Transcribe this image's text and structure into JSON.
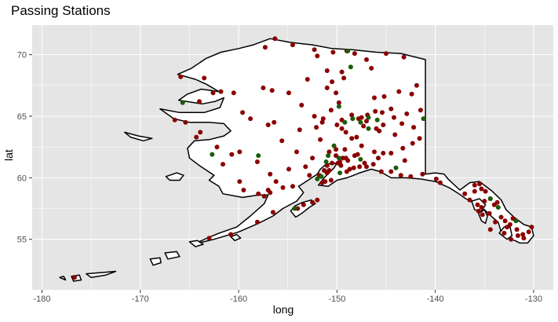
{
  "chart_data": {
    "type": "scatter",
    "title": "Passing Stations",
    "xlabel": "long",
    "ylabel": "lat",
    "xlim": [
      -181,
      -128
    ],
    "ylim": [
      50.9,
      72.4
    ],
    "x_ticks": [
      -180,
      -170,
      -160,
      -150,
      -140,
      -130
    ],
    "y_ticks": [
      55,
      60,
      65,
      70
    ],
    "grid": true,
    "background": "#e5e5e5",
    "grid_color": "#ffffff",
    "land_fill": "#ffffff",
    "land_stroke": "#000000",
    "series": [
      {
        "color": "#8b0000",
        "points": [
          [
            -176.7,
            51.9
          ],
          [
            -163.0,
            55.1
          ],
          [
            -160.8,
            55.4
          ],
          [
            -158.1,
            56.4
          ],
          [
            -156.5,
            57.2
          ],
          [
            -154.0,
            57.5
          ],
          [
            -153.4,
            57.8
          ],
          [
            -152.5,
            58.0
          ],
          [
            -152.0,
            58.2
          ],
          [
            -154.5,
            59.3
          ],
          [
            -155.5,
            59.2
          ],
          [
            -156.8,
            58.8
          ],
          [
            -157.4,
            58.5
          ],
          [
            -158.0,
            58.7
          ],
          [
            -159.5,
            59.0
          ],
          [
            -159.9,
            59.7
          ],
          [
            -157.0,
            59.0
          ],
          [
            -151.5,
            59.6
          ],
          [
            -151.2,
            59.7
          ],
          [
            -150.6,
            59.8
          ],
          [
            -151.0,
            60.4
          ],
          [
            -151.3,
            60.6
          ],
          [
            -151.0,
            61.0
          ],
          [
            -150.5,
            61.2
          ],
          [
            -149.9,
            61.2
          ],
          [
            -149.7,
            61.3
          ],
          [
            -149.4,
            61.6
          ],
          [
            -149.1,
            61.6
          ],
          [
            -148.9,
            61.4
          ],
          [
            -150.1,
            61.8
          ],
          [
            -150.8,
            62.1
          ],
          [
            -150.1,
            62.3
          ],
          [
            -149.2,
            62.3
          ],
          [
            -147.9,
            61.9
          ],
          [
            -149.0,
            60.5
          ],
          [
            -148.7,
            60.7
          ],
          [
            -148.3,
            60.8
          ],
          [
            -147.7,
            60.9
          ],
          [
            -147.0,
            60.9
          ],
          [
            -146.3,
            61.1
          ],
          [
            -145.5,
            60.5
          ],
          [
            -144.5,
            60.5
          ],
          [
            -143.5,
            60.2
          ],
          [
            -142.5,
            60.1
          ],
          [
            -141.3,
            60.3
          ],
          [
            -139.9,
            59.9
          ],
          [
            -139.5,
            59.6
          ],
          [
            -136.0,
            59.4
          ],
          [
            -135.5,
            59.5
          ],
          [
            -134.9,
            58.9
          ],
          [
            -134.4,
            58.3
          ],
          [
            -135.0,
            58.1
          ],
          [
            -134.0,
            57.8
          ],
          [
            -135.3,
            57.6
          ],
          [
            -135.6,
            57.3
          ],
          [
            -134.5,
            57.1
          ],
          [
            -133.3,
            56.8
          ],
          [
            -133.9,
            56.4
          ],
          [
            -132.9,
            56.5
          ],
          [
            -132.4,
            56.2
          ],
          [
            -131.7,
            55.8
          ],
          [
            -131.6,
            55.3
          ],
          [
            -131.0,
            55.1
          ],
          [
            -130.5,
            55.6
          ],
          [
            -130.2,
            56.0
          ],
          [
            -133.0,
            55.5
          ],
          [
            -132.3,
            55.0
          ],
          [
            -134.4,
            55.8
          ],
          [
            -131.1,
            55.4
          ],
          [
            -132.7,
            56.0
          ],
          [
            -135.2,
            57.0
          ],
          [
            -133.7,
            58.0
          ],
          [
            -132.1,
            56.7
          ],
          [
            -136.5,
            58.2
          ],
          [
            -137.0,
            58.7
          ],
          [
            -136.0,
            58.9
          ],
          [
            -135.3,
            59.1
          ],
          [
            -135.7,
            57.8
          ],
          [
            -147.8,
            64.8
          ],
          [
            -147.5,
            64.9
          ],
          [
            -147.0,
            64.6
          ],
          [
            -146.0,
            64.0
          ],
          [
            -145.7,
            63.8
          ],
          [
            -145.3,
            64.3
          ],
          [
            -144.2,
            64.9
          ],
          [
            -143.4,
            64.4
          ],
          [
            -142.2,
            64.1
          ],
          [
            -141.6,
            63.2
          ],
          [
            -142.3,
            62.8
          ],
          [
            -143.3,
            62.4
          ],
          [
            -144.5,
            62.0
          ],
          [
            -145.3,
            62.0
          ],
          [
            -146.2,
            62.1
          ],
          [
            -147.5,
            62.6
          ],
          [
            -148.5,
            63.2
          ],
          [
            -149.1,
            63.7
          ],
          [
            -149.5,
            64.0
          ],
          [
            -150.0,
            64.3
          ],
          [
            -151.5,
            64.5
          ],
          [
            -152.3,
            65.0
          ],
          [
            -153.6,
            65.9
          ],
          [
            -154.9,
            66.9
          ],
          [
            -156.6,
            67.1
          ],
          [
            -157.5,
            67.3
          ],
          [
            -160.5,
            66.9
          ],
          [
            -162.6,
            66.9
          ],
          [
            -164.0,
            66.2
          ],
          [
            -165.4,
            64.5
          ],
          [
            -166.5,
            64.7
          ],
          [
            -163.9,
            63.7
          ],
          [
            -162.2,
            62.5
          ],
          [
            -160.7,
            61.9
          ],
          [
            -158.1,
            61.3
          ],
          [
            -156.8,
            60.3
          ],
          [
            -153.2,
            60.9
          ],
          [
            -152.5,
            61.6
          ],
          [
            -154.1,
            62.1
          ],
          [
            -155.6,
            63.0
          ],
          [
            -151.7,
            63.1
          ],
          [
            -157.0,
            64.3
          ],
          [
            -158.8,
            64.8
          ],
          [
            -159.6,
            65.3
          ],
          [
            -150.4,
            70.2
          ],
          [
            -149.0,
            70.3
          ],
          [
            -148.2,
            70.1
          ],
          [
            -147.0,
            69.6
          ],
          [
            -149.3,
            68.1
          ],
          [
            -149.5,
            68.6
          ],
          [
            -150.5,
            67.8
          ],
          [
            -150.1,
            66.9
          ],
          [
            -149.8,
            66.1
          ],
          [
            -146.2,
            66.5
          ],
          [
            -145.2,
            66.6
          ],
          [
            -143.7,
            67.0
          ],
          [
            -142.4,
            66.8
          ],
          [
            -141.5,
            65.5
          ],
          [
            -142.9,
            65.2
          ],
          [
            -144.5,
            65.6
          ],
          [
            -145.4,
            65.3
          ],
          [
            -146.9,
            65.1
          ],
          [
            -148.5,
            65.1
          ],
          [
            -149.5,
            64.7
          ],
          [
            -150.6,
            65.5
          ],
          [
            -151.4,
            64.8
          ],
          [
            -152.1,
            64.1
          ],
          [
            -156.3,
            71.3
          ],
          [
            -154.5,
            70.8
          ],
          [
            -152.3,
            70.4
          ],
          [
            -152.0,
            69.9
          ],
          [
            -157.3,
            70.6
          ],
          [
            -153.0,
            68.0
          ],
          [
            -151.0,
            67.3
          ],
          [
            -141.9,
            67.5
          ],
          [
            -143.2,
            69.8
          ],
          [
            -145.0,
            70.1
          ],
          [
            -146.5,
            68.9
          ],
          [
            -151.0,
            68.7
          ],
          [
            -165.9,
            68.2
          ],
          [
            -163.5,
            68.1
          ],
          [
            -161.8,
            67.0
          ],
          [
            -164.3,
            63.3
          ],
          [
            -161.6,
            61.1
          ],
          [
            -159.9,
            62.1
          ],
          [
            -156.4,
            64.5
          ],
          [
            -153.8,
            63.9
          ],
          [
            -148.0,
            63.3
          ],
          [
            -147.3,
            64.2
          ],
          [
            -146.1,
            65.4
          ],
          [
            -144.1,
            63.5
          ],
          [
            -143.1,
            61.4
          ],
          [
            -145.8,
            61.6
          ],
          [
            -147.2,
            61.2
          ],
          [
            -148.2,
            61.8
          ],
          [
            -149.6,
            61.0
          ],
          [
            -150.8,
            60.6
          ],
          [
            -151.8,
            60.2
          ],
          [
            -152.8,
            60.2
          ],
          [
            -154.9,
            60.7
          ],
          [
            -156.2,
            59.7
          ]
        ]
      },
      {
        "color": "#1a5c0a",
        "points": [
          [
            -148.9,
            70.3
          ],
          [
            -148.6,
            69.0
          ],
          [
            -149.8,
            65.8
          ],
          [
            -148.4,
            64.8
          ],
          [
            -147.6,
            64.5
          ],
          [
            -146.8,
            64.9
          ],
          [
            -145.9,
            64.7
          ],
          [
            -141.2,
            64.8
          ],
          [
            -149.2,
            64.5
          ],
          [
            -162.7,
            61.9
          ],
          [
            -158.0,
            61.8
          ],
          [
            -165.7,
            66.1
          ],
          [
            -151.1,
            61.3
          ],
          [
            -150.3,
            62.6
          ],
          [
            -149.8,
            61.6
          ],
          [
            -146.8,
            64.0
          ],
          [
            -147.6,
            61.5
          ],
          [
            -152.0,
            59.9
          ],
          [
            -154.3,
            57.5
          ],
          [
            -133.6,
            57.6
          ],
          [
            -131.8,
            56.5
          ],
          [
            -134.4,
            58.3
          ],
          [
            -151.6,
            60.1
          ],
          [
            -149.7,
            60.4
          ],
          [
            -150.9,
            61.8
          ],
          [
            -144.0,
            60.8
          ]
        ]
      }
    ]
  }
}
